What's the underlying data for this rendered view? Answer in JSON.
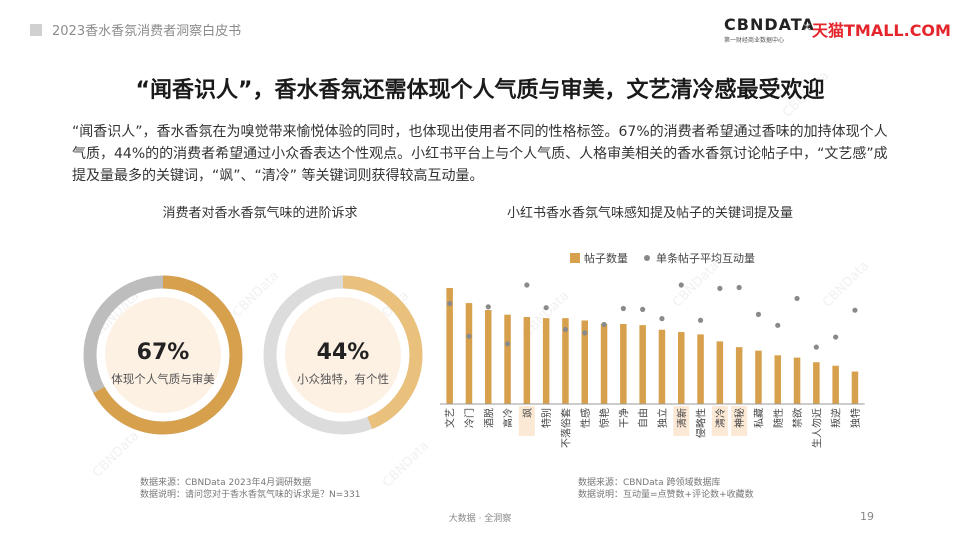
{
  "header": {
    "report_title": "2023香水香氛消费者洞察白皮书",
    "logo_cbn": "CBNDATA",
    "logo_cbn_sub": "第一财经商业数据中心",
    "logo_separator": "×",
    "logo_tmall": "天猫TMALL.COM"
  },
  "headline": "“闻香识人”，香水香氛还需体现个人气质与审美，文艺清冷感最受欢迎",
  "intro": "“闻香识人”，香水香氛在为嗅觉带来愉悦体验的同时，也体现出使用者不同的性格标签。67%的消费者希望通过香味的加持体现个人气质，44%的的消费者希望通过小众香表达个性观点。小红书平台上与个人气质、人格审美相关的香水香氛讨论帖子中，“文艺感”成提及量最多的关键词，“飒”、“清冷” 等关键词则获得较高互动量。",
  "left_panel": {
    "title": "消费者对香水香氛气味的进阶诉求",
    "source_line1": "数据来源：CBNData 2023年4月调研数据",
    "source_line2": "数据说明：请问您对于香水香氛气味的诉求是？N=331"
  },
  "right_panel": {
    "title": "小红书香水香氛气味感知提及帖子的关键词提及量",
    "source_line1": "数据来源：CBNData 跨领域数据库",
    "source_line2": "数据说明：互动量=点赞数+评论数+收藏数"
  },
  "footer": {
    "center": "大数据 · 全洞察",
    "page": "19"
  },
  "watermark": "CBNData",
  "colors": {
    "bar": "#d7a04d",
    "dot": "#8a8a8a",
    "ring_primary": "#d7a04d",
    "ring_secondary": "#e9c07c",
    "ring_gray": "#bdbdbd",
    "ring_light_gray": "#dcdcdc",
    "highlight": "#fbe9d6",
    "inner_fill": "#fdf1e4"
  },
  "chart_data": [
    {
      "type": "pie",
      "variant": "donut",
      "value": 67,
      "value_label": "67%",
      "label": "体现个人气质与审美"
    },
    {
      "type": "pie",
      "variant": "donut",
      "value": 44,
      "value_label": "44%",
      "label": "小众独特，有个性"
    },
    {
      "type": "bar",
      "title": "小红书香水香氛气味感知提及帖子的关键词提及量",
      "categories": [
        "文艺",
        "冷门",
        "酒脱",
        "高冷",
        "飒",
        "特别",
        "不落俗套",
        "性感",
        "惊艳",
        "干净",
        "自由",
        "独立",
        "清新",
        "侵略性",
        "清冷",
        "神秘",
        "私藏",
        "随性",
        "禁欲",
        "生人勿近",
        "叛逆",
        "独特"
      ],
      "highlighted": [
        "飒",
        "清新",
        "清冷",
        "神秘"
      ],
      "legend_position": "top",
      "series": [
        {
          "name": "帖子数量",
          "kind": "bar",
          "values": [
            100,
            87,
            81,
            77,
            75,
            74,
            74,
            72,
            69,
            69,
            68,
            64,
            62,
            60,
            54,
            49,
            46,
            42,
            40,
            36,
            33,
            28
          ]
        },
        {
          "name": "单条帖子平均互动量",
          "kind": "dot",
          "values": [
            78,
            39,
            74,
            30,
            100,
            73,
            47,
            43,
            53,
            72,
            71,
            60,
            100,
            58,
            96,
            97,
            65,
            52,
            84,
            26,
            38,
            70
          ]
        }
      ],
      "ylim": [
        0,
        100
      ]
    }
  ]
}
